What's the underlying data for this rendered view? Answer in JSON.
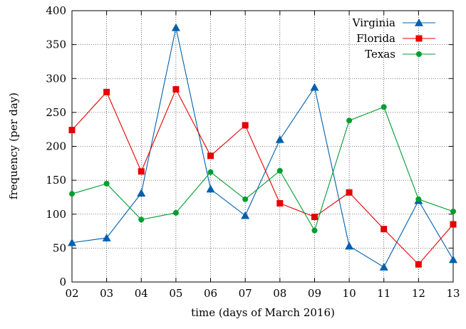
{
  "chart_data": {
    "type": "line",
    "title": "",
    "xlabel": "time (days of March 2016)",
    "ylabel": "frequency (per day)",
    "categories": [
      "02",
      "03",
      "04",
      "05",
      "06",
      "07",
      "08",
      "09",
      "10",
      "11",
      "12",
      "13"
    ],
    "ylim": [
      0,
      400
    ],
    "yticks": [
      0,
      50,
      100,
      150,
      200,
      250,
      300,
      350,
      400
    ],
    "grid": true,
    "legend_position": "top-right",
    "series": [
      {
        "name": "Virginia",
        "color": "#0060ad",
        "marker": "triangle",
        "values": [
          58,
          65,
          131,
          375,
          137,
          98,
          210,
          287,
          53,
          22,
          120,
          33
        ]
      },
      {
        "name": "Florida",
        "color": "#e60000",
        "marker": "square",
        "values": [
          224,
          280,
          163,
          284,
          186,
          231,
          116,
          96,
          132,
          78,
          26,
          85
        ]
      },
      {
        "name": "Texas",
        "color": "#009e30",
        "marker": "circle",
        "values": [
          130,
          145,
          92,
          102,
          162,
          122,
          164,
          76,
          238,
          258,
          122,
          104
        ]
      }
    ]
  }
}
